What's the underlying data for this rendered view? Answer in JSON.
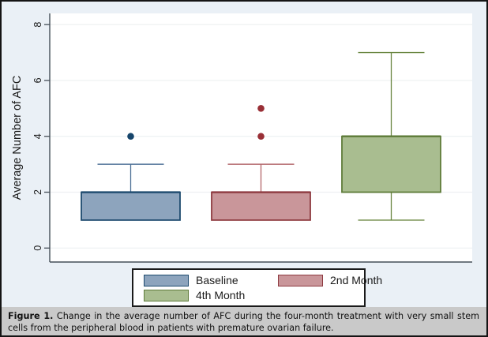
{
  "figure_caption": {
    "label": "Figure 1.",
    "text": " Change in the average number of AFC during the four-month treatment with very small stem cells from the peripheral blood in patients with premature ovarian failure."
  },
  "chart_data": {
    "type": "box",
    "title": "",
    "ylabel": "Average Number of AFC",
    "xlabel": "",
    "yticks": [
      0,
      2,
      4,
      6,
      8
    ],
    "ylim": [
      -0.5,
      8.4
    ],
    "grid": true,
    "legend_position": "bottom-center",
    "series": [
      {
        "name": "Baseline",
        "q1": 1,
        "median": 2,
        "q3": 2,
        "whisker_low": 1,
        "whisker_high": 3,
        "outliers": [
          4
        ],
        "fill": "#8da4bd",
        "stroke": "#1d4a6e",
        "whisker": "#4d7096",
        "dot": "#16456b"
      },
      {
        "name": "2nd Month",
        "q1": 1,
        "median": 2,
        "q3": 2,
        "whisker_low": 1,
        "whisker_high": 3,
        "outliers": [
          4,
          5
        ],
        "fill": "#c9969a",
        "stroke": "#8e3a40",
        "whisker": "#b26569",
        "dot": "#992f36"
      },
      {
        "name": "4th Month",
        "q1": 2,
        "median": 4,
        "q3": 4,
        "whisker_low": 1,
        "whisker_high": 7,
        "outliers": [],
        "fill": "#a9bd90",
        "stroke": "#5e7b39",
        "whisker": "#68853f",
        "dot": "#5e7b39"
      }
    ]
  },
  "colors": {
    "canvas_bg": "#eaf0f6",
    "plot_bg": "#ffffff",
    "grid": "#edf0f2",
    "axis": "#454f58",
    "tick_text": "#1a1a1a",
    "legend_bg": "#ffffff",
    "caption_bg": "#c9c9c9",
    "outer_border": "#141414"
  }
}
